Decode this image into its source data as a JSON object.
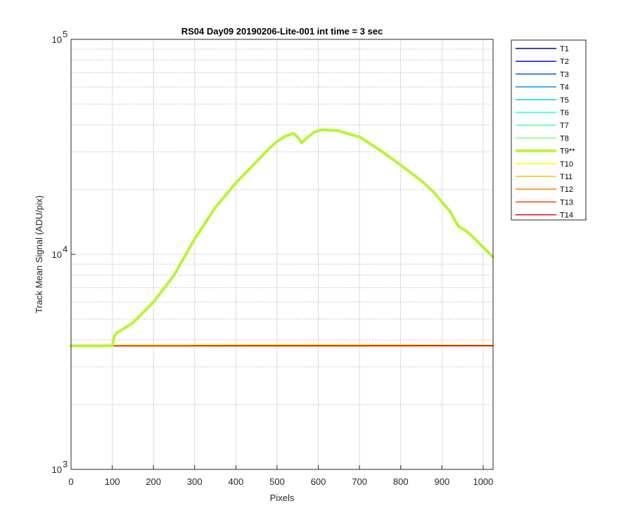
{
  "chart_data": {
    "type": "line",
    "title": "RS04 Day09 20190206-Lite-001 int time = 3 sec",
    "xlabel": "Pixels",
    "ylabel": "Track Mean Signal (ADU/pix)",
    "xlim": [
      0,
      1024
    ],
    "ylim": [
      1000,
      100000
    ],
    "yscale": "log",
    "grid": true,
    "legend_position": "outside-top-right",
    "x_ticks": [
      "0",
      "100",
      "200",
      "300",
      "400",
      "500",
      "600",
      "700",
      "800",
      "900",
      "1000"
    ],
    "y_tick_base": "10",
    "y_tick_exponents": [
      "3",
      "4",
      "5"
    ],
    "series": [
      {
        "name": "T1",
        "color": "#00008f",
        "x": [
          0,
          1024
        ],
        "y": [
          3750,
          3760
        ]
      },
      {
        "name": "T2",
        "color": "#0010ff",
        "x": [
          0,
          1024
        ],
        "y": [
          3750,
          3760
        ]
      },
      {
        "name": "T3",
        "color": "#0050ff",
        "x": [
          0,
          1024
        ],
        "y": [
          3750,
          3760
        ]
      },
      {
        "name": "T4",
        "color": "#0090ff",
        "x": [
          0,
          1024
        ],
        "y": [
          3750,
          3760
        ]
      },
      {
        "name": "T5",
        "color": "#00d0ff",
        "x": [
          0,
          1024
        ],
        "y": [
          3750,
          3760
        ]
      },
      {
        "name": "T6",
        "color": "#20ffdf",
        "x": [
          0,
          1024
        ],
        "y": [
          3750,
          3760
        ]
      },
      {
        "name": "T7",
        "color": "#60ff9f",
        "x": [
          0,
          1024
        ],
        "y": [
          3750,
          3760
        ]
      },
      {
        "name": "T8",
        "color": "#80ff80",
        "x": [
          0,
          1024
        ],
        "y": [
          3750,
          3760
        ]
      },
      {
        "name": "T9**",
        "color": "#b7f536",
        "bold": true,
        "x": [
          0,
          100,
          105,
          110,
          150,
          200,
          250,
          300,
          350,
          400,
          450,
          480,
          500,
          520,
          540,
          550,
          560,
          570,
          590,
          610,
          630,
          650,
          680,
          700,
          750,
          800,
          850,
          880,
          900,
          920,
          940,
          960,
          980,
          1000,
          1024
        ],
        "y": [
          3750,
          3760,
          4150,
          4300,
          4800,
          6000,
          8000,
          11800,
          16500,
          21500,
          27000,
          31000,
          33500,
          35500,
          36500,
          35000,
          33000,
          34500,
          37000,
          38000,
          37800,
          37500,
          36000,
          35200,
          30500,
          26000,
          22000,
          19500,
          17500,
          15800,
          13500,
          12800,
          11800,
          10800,
          9700
        ]
      },
      {
        "name": "T10",
        "color": "#ffff00",
        "x": [
          0,
          200,
          400,
          600,
          800,
          1024
        ],
        "y": [
          3760,
          3800,
          3810,
          3810,
          3800,
          3780
        ]
      },
      {
        "name": "T11",
        "color": "#ffc000",
        "x": [
          0,
          1024
        ],
        "y": [
          3755,
          3765
        ]
      },
      {
        "name": "T12",
        "color": "#ff8000",
        "x": [
          0,
          1024
        ],
        "y": [
          3750,
          3760
        ]
      },
      {
        "name": "T13",
        "color": "#ff4000",
        "x": [
          0,
          1024
        ],
        "y": [
          3750,
          3760
        ]
      },
      {
        "name": "T14",
        "color": "#f00000",
        "x": [
          0,
          1024
        ],
        "y": [
          3750,
          3760
        ]
      }
    ]
  }
}
